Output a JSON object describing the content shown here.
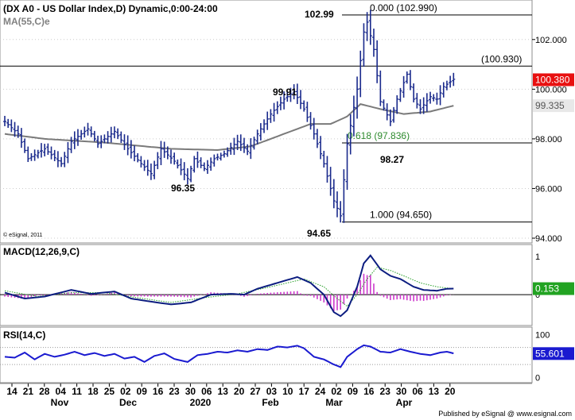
{
  "window": {
    "title": "(DX A0 - US Dollar Index,D) Dynamic,0:00-24:00",
    "ma_label": "MA(55,C)e",
    "copyright": "© eSignal, 2011",
    "footer": "Published by eSignal @ www.esignal.com"
  },
  "colors": {
    "price_bars": "#1a2a8c",
    "moving_average": "#7a7a7a",
    "level_line": "#000000",
    "fib_618_text": "#2e8b2e",
    "last_price_badge": "#e81010",
    "ma_badge": "#e8e8e8",
    "macd_line": "#0c1d80",
    "macd_signal": "#2aa02a",
    "macd_histogram": "#cc3acc",
    "macd_badge": "#22a322",
    "rsi_line": "#1a1ad0",
    "rsi_badge": "#1a1ad0",
    "grid": "#cccccc"
  },
  "chart_data": [
    {
      "type": "ohlc",
      "title": "(DX A0 - US Dollar Index,D) Dynamic,0:00-24:00",
      "series": [
        {
          "name": "DX A0",
          "kind": "price_bars"
        },
        {
          "name": "MA(55,C)e",
          "kind": "moving_average"
        }
      ],
      "ylim": [
        94,
        103.4
      ],
      "yticks": [
        "94.000",
        "96.000",
        "98.000",
        "100.000",
        "102.000"
      ],
      "grid": true,
      "x_tick_labels": [
        "14",
        "21",
        "28",
        "04",
        "11",
        "18",
        "25",
        "02",
        "09",
        "16",
        "23",
        "30",
        "06",
        "13",
        "20",
        "27",
        "03",
        "10",
        "17",
        "24",
        "02",
        "09",
        "16",
        "23",
        "30",
        "06",
        "13",
        "20"
      ],
      "months": [
        "Nov",
        "Dec",
        "2020",
        "Feb",
        "Mar",
        "Apr"
      ],
      "last_price": "100.380",
      "ma_value": "99.335",
      "annotations": {
        "high_label": "102.99",
        "low_label": "94.65",
        "feb_high": "99.91",
        "dec_low": "96.35",
        "retrace_low": "98.27"
      },
      "levels": [
        {
          "label": "0.000 (102.990)",
          "value": 102.99
        },
        {
          "label": "(100.930)",
          "value": 100.93
        },
        {
          "label": "0.618 (97.836)",
          "value": 97.836
        },
        {
          "label": "1.000 (94.650)",
          "value": 94.65
        }
      ],
      "price_keypoints": [
        [
          0,
          98.7
        ],
        [
          4,
          98.2
        ],
        [
          7,
          97.2
        ],
        [
          12,
          97.6
        ],
        [
          17,
          97.0
        ],
        [
          20,
          97.9
        ],
        [
          25,
          98.4
        ],
        [
          28,
          97.8
        ],
        [
          33,
          98.3
        ],
        [
          37,
          97.6
        ],
        [
          41,
          97.0
        ],
        [
          44,
          96.6
        ],
        [
          47,
          97.6
        ],
        [
          51,
          97.1
        ],
        [
          55,
          96.4
        ],
        [
          57,
          97.2
        ],
        [
          60,
          96.8
        ],
        [
          63,
          97.2
        ],
        [
          66,
          97.4
        ],
        [
          70,
          97.9
        ],
        [
          73,
          97.5
        ],
        [
          76,
          98.2
        ],
        [
          80,
          99.0
        ],
        [
          84,
          99.6
        ],
        [
          87,
          99.9
        ],
        [
          90,
          99.2
        ],
        [
          93,
          98.2
        ],
        [
          96,
          97.0
        ],
        [
          99,
          95.5
        ],
        [
          101,
          94.9
        ],
        [
          103,
          97.8
        ],
        [
          106,
          100.0
        ],
        [
          108,
          102.3
        ],
        [
          109,
          102.7
        ],
        [
          111,
          101.6
        ],
        [
          113,
          99.5
        ],
        [
          116,
          98.7
        ],
        [
          118,
          99.6
        ],
        [
          121,
          100.6
        ],
        [
          123,
          99.6
        ],
        [
          125,
          99.2
        ],
        [
          128,
          99.7
        ],
        [
          130,
          99.6
        ],
        [
          132,
          100.1
        ],
        [
          134,
          100.3
        ],
        [
          135,
          100.4
        ]
      ],
      "ma_keypoints": [
        [
          0,
          98.2
        ],
        [
          12,
          98.0
        ],
        [
          30,
          97.85
        ],
        [
          50,
          97.6
        ],
        [
          64,
          97.55
        ],
        [
          74,
          97.7
        ],
        [
          84,
          98.2
        ],
        [
          92,
          98.6
        ],
        [
          98,
          98.6
        ],
        [
          103,
          98.9
        ],
        [
          107,
          99.4
        ],
        [
          113,
          99.2
        ],
        [
          120,
          99.0
        ],
        [
          128,
          99.1
        ],
        [
          135,
          99.335
        ]
      ],
      "value_format": "decimal"
    },
    {
      "type": "line",
      "title": "MACD(12,26,9,C)",
      "series": [
        {
          "name": "MACD",
          "kind": "line"
        },
        {
          "name": "Signal",
          "kind": "dotted"
        },
        {
          "name": "Histogram",
          "kind": "bar"
        }
      ],
      "yticks": [
        "1",
        "0"
      ],
      "ylim": [
        -0.75,
        1.2
      ],
      "last_value": "0.153",
      "macd_keypoints": [
        [
          0,
          0.05
        ],
        [
          6,
          -0.1
        ],
        [
          12,
          -0.05
        ],
        [
          20,
          0.12
        ],
        [
          26,
          0.02
        ],
        [
          33,
          0.08
        ],
        [
          38,
          -0.1
        ],
        [
          44,
          -0.18
        ],
        [
          50,
          -0.25
        ],
        [
          56,
          -0.2
        ],
        [
          62,
          0.0
        ],
        [
          68,
          0.02
        ],
        [
          72,
          0.0
        ],
        [
          76,
          0.15
        ],
        [
          82,
          0.3
        ],
        [
          88,
          0.45
        ],
        [
          92,
          0.3
        ],
        [
          96,
          0.0
        ],
        [
          99,
          -0.45
        ],
        [
          101,
          -0.55
        ],
        [
          103,
          -0.4
        ],
        [
          106,
          0.2
        ],
        [
          108,
          0.8
        ],
        [
          110,
          1.0
        ],
        [
          113,
          0.65
        ],
        [
          116,
          0.48
        ],
        [
          119,
          0.4
        ],
        [
          123,
          0.2
        ],
        [
          126,
          0.12
        ],
        [
          130,
          0.1
        ],
        [
          133,
          0.15
        ],
        [
          135,
          0.153
        ]
      ],
      "signal_keypoints": [
        [
          0,
          0.1
        ],
        [
          10,
          -0.05
        ],
        [
          20,
          0.05
        ],
        [
          30,
          0.05
        ],
        [
          40,
          -0.08
        ],
        [
          50,
          -0.2
        ],
        [
          60,
          -0.08
        ],
        [
          70,
          0.02
        ],
        [
          80,
          0.2
        ],
        [
          90,
          0.4
        ],
        [
          96,
          0.2
        ],
        [
          100,
          -0.1
        ],
        [
          103,
          -0.3
        ],
        [
          106,
          0.0
        ],
        [
          109,
          0.4
        ],
        [
          112,
          0.7
        ],
        [
          116,
          0.62
        ],
        [
          120,
          0.48
        ],
        [
          125,
          0.3
        ],
        [
          130,
          0.2
        ],
        [
          135,
          0.15
        ]
      ]
    },
    {
      "type": "line",
      "title": "RSI(14,C)",
      "series": [
        {
          "name": "RSI",
          "kind": "line"
        }
      ],
      "yticks": [
        "100",
        "0"
      ],
      "ylim": [
        -5,
        110
      ],
      "last_value": "55.601",
      "rsi_keypoints": [
        [
          0,
          48
        ],
        [
          3,
          46
        ],
        [
          6,
          58
        ],
        [
          9,
          42
        ],
        [
          12,
          55
        ],
        [
          15,
          48
        ],
        [
          18,
          53
        ],
        [
          21,
          60
        ],
        [
          24,
          52
        ],
        [
          27,
          57
        ],
        [
          30,
          50
        ],
        [
          33,
          55
        ],
        [
          36,
          44
        ],
        [
          39,
          48
        ],
        [
          42,
          36
        ],
        [
          45,
          50
        ],
        [
          48,
          56
        ],
        [
          51,
          43
        ],
        [
          55,
          36
        ],
        [
          58,
          52
        ],
        [
          61,
          55
        ],
        [
          64,
          60
        ],
        [
          67,
          58
        ],
        [
          70,
          63
        ],
        [
          73,
          60
        ],
        [
          76,
          66
        ],
        [
          79,
          64
        ],
        [
          82,
          72
        ],
        [
          85,
          70
        ],
        [
          88,
          74
        ],
        [
          90,
          68
        ],
        [
          93,
          48
        ],
        [
          96,
          42
        ],
        [
          99,
          30
        ],
        [
          101,
          24
        ],
        [
          103,
          48
        ],
        [
          106,
          66
        ],
        [
          108,
          75
        ],
        [
          110,
          72
        ],
        [
          113,
          60
        ],
        [
          116,
          58
        ],
        [
          119,
          66
        ],
        [
          122,
          60
        ],
        [
          125,
          55
        ],
        [
          128,
          52
        ],
        [
          131,
          58
        ],
        [
          133,
          60
        ],
        [
          135,
          56
        ]
      ]
    }
  ]
}
